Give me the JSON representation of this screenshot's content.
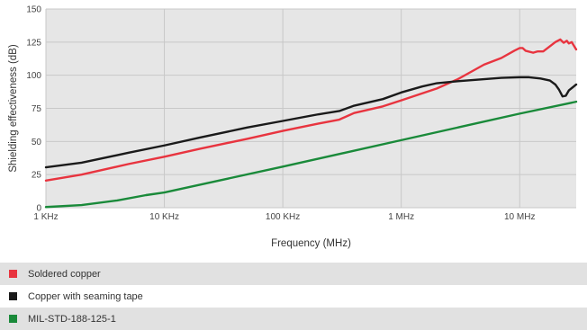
{
  "chart_data": {
    "type": "line",
    "xlabel": "Frequency (MHz)",
    "ylabel": "Shielding effectiveness (dB)",
    "x_scale": "log",
    "xlim_hz": [
      1000,
      30000000
    ],
    "ylim": [
      0,
      150
    ],
    "yticks": [
      0,
      25,
      50,
      75,
      100,
      125,
      150
    ],
    "xticks": [
      {
        "value_hz": 1000,
        "label": "1 KHz"
      },
      {
        "value_hz": 10000,
        "label": "10 KHz"
      },
      {
        "value_hz": 100000,
        "label": "100 KHz"
      },
      {
        "value_hz": 1000000,
        "label": "1 MHz"
      },
      {
        "value_hz": 10000000,
        "label": "10 MHz"
      }
    ],
    "grid": true,
    "plot_background": "#e6e6e6",
    "grid_color": "#c8c8c8",
    "legend_position": "bottom",
    "series": [
      {
        "name": "Soldered copper",
        "color": "#e8343f",
        "points": [
          [
            1000,
            20.5
          ],
          [
            2000,
            25
          ],
          [
            5000,
            33
          ],
          [
            10000,
            38.5
          ],
          [
            20000,
            44.5
          ],
          [
            50000,
            52
          ],
          [
            100000,
            58
          ],
          [
            200000,
            63.5
          ],
          [
            300000,
            66.5
          ],
          [
            400000,
            71.5
          ],
          [
            700000,
            76.5
          ],
          [
            1000000,
            81
          ],
          [
            2000000,
            90
          ],
          [
            3000000,
            97
          ],
          [
            5000000,
            108
          ],
          [
            7000000,
            113
          ],
          [
            9000000,
            118.5
          ],
          [
            10000000,
            120.5
          ],
          [
            10600000,
            120.5
          ],
          [
            11200000,
            118.5
          ],
          [
            13000000,
            117
          ],
          [
            14200000,
            118
          ],
          [
            15800000,
            118
          ],
          [
            20000000,
            125
          ],
          [
            22000000,
            127
          ],
          [
            23500000,
            124.5
          ],
          [
            25000000,
            126
          ],
          [
            26000000,
            124
          ],
          [
            27500000,
            125
          ],
          [
            30000000,
            119.5
          ]
        ]
      },
      {
        "name": "Copper with seaming tape",
        "color": "#1a1a1a",
        "points": [
          [
            1000,
            30.5
          ],
          [
            2000,
            34
          ],
          [
            5000,
            41.5
          ],
          [
            10000,
            47
          ],
          [
            20000,
            53
          ],
          [
            50000,
            60.5
          ],
          [
            100000,
            65.5
          ],
          [
            200000,
            70.5
          ],
          [
            300000,
            73
          ],
          [
            400000,
            77
          ],
          [
            700000,
            82
          ],
          [
            1000000,
            87
          ],
          [
            1500000,
            91.5
          ],
          [
            2000000,
            94
          ],
          [
            3000000,
            95.5
          ],
          [
            5000000,
            97
          ],
          [
            7000000,
            98
          ],
          [
            10000000,
            98.5
          ],
          [
            12000000,
            98.5
          ],
          [
            15000000,
            97.5
          ],
          [
            18000000,
            96
          ],
          [
            20000000,
            93
          ],
          [
            21500000,
            89
          ],
          [
            23000000,
            84
          ],
          [
            24500000,
            84.5
          ],
          [
            26000000,
            88.5
          ],
          [
            30000000,
            93
          ]
        ]
      },
      {
        "name": "MIL-STD-188-125-1",
        "color": "#1a8a3a",
        "points": [
          [
            1000,
            0.5
          ],
          [
            2000,
            2
          ],
          [
            4000,
            5.5
          ],
          [
            7000,
            9.5
          ],
          [
            10000,
            11.5
          ],
          [
            100000,
            31
          ],
          [
            1000000,
            51
          ],
          [
            10000000,
            71
          ],
          [
            30000000,
            80
          ]
        ]
      }
    ]
  }
}
